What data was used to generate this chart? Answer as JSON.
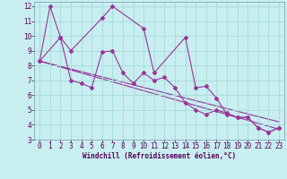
{
  "xlabel": "Windchill (Refroidissement éolien,°C)",
  "background_color": "#c8eef0",
  "grid_color": "#aadddd",
  "line_color": "#993399",
  "xlim": [
    -0.5,
    23.5
  ],
  "ylim": [
    3,
    12.3
  ],
  "yticks": [
    3,
    4,
    5,
    6,
    7,
    8,
    9,
    10,
    11,
    12
  ],
  "xticks": [
    0,
    1,
    2,
    3,
    4,
    5,
    6,
    7,
    8,
    9,
    10,
    11,
    12,
    13,
    14,
    15,
    16,
    17,
    18,
    19,
    20,
    21,
    22,
    23
  ],
  "series1": {
    "x": [
      0,
      1,
      2,
      3,
      6,
      7,
      10,
      11,
      14,
      15,
      16,
      17,
      18,
      19,
      20,
      21,
      22,
      23
    ],
    "y": [
      8.3,
      12.0,
      9.9,
      9.0,
      11.2,
      12.0,
      10.5,
      7.5,
      9.9,
      6.5,
      6.6,
      5.8,
      4.7,
      4.5,
      4.5,
      3.8,
      3.5,
      3.8
    ]
  },
  "series2": {
    "x": [
      0,
      2,
      3,
      4,
      5,
      6,
      7,
      8,
      9,
      10,
      11,
      12,
      13,
      14,
      15,
      16,
      17,
      18,
      19,
      20,
      21,
      22,
      23
    ],
    "y": [
      8.3,
      9.9,
      7.0,
      6.8,
      6.5,
      8.9,
      9.0,
      7.5,
      6.8,
      7.5,
      7.0,
      7.2,
      6.5,
      5.5,
      5.0,
      4.7,
      5.0,
      4.8,
      4.5,
      4.5,
      3.8,
      3.5,
      3.8
    ]
  },
  "line1": {
    "x": [
      0,
      23
    ],
    "y": [
      8.3,
      3.7
    ]
  },
  "line2": {
    "x": [
      0,
      23
    ],
    "y": [
      8.3,
      4.2
    ]
  },
  "marker_style": "D",
  "marker_size": 2.0,
  "line_width": 0.8
}
